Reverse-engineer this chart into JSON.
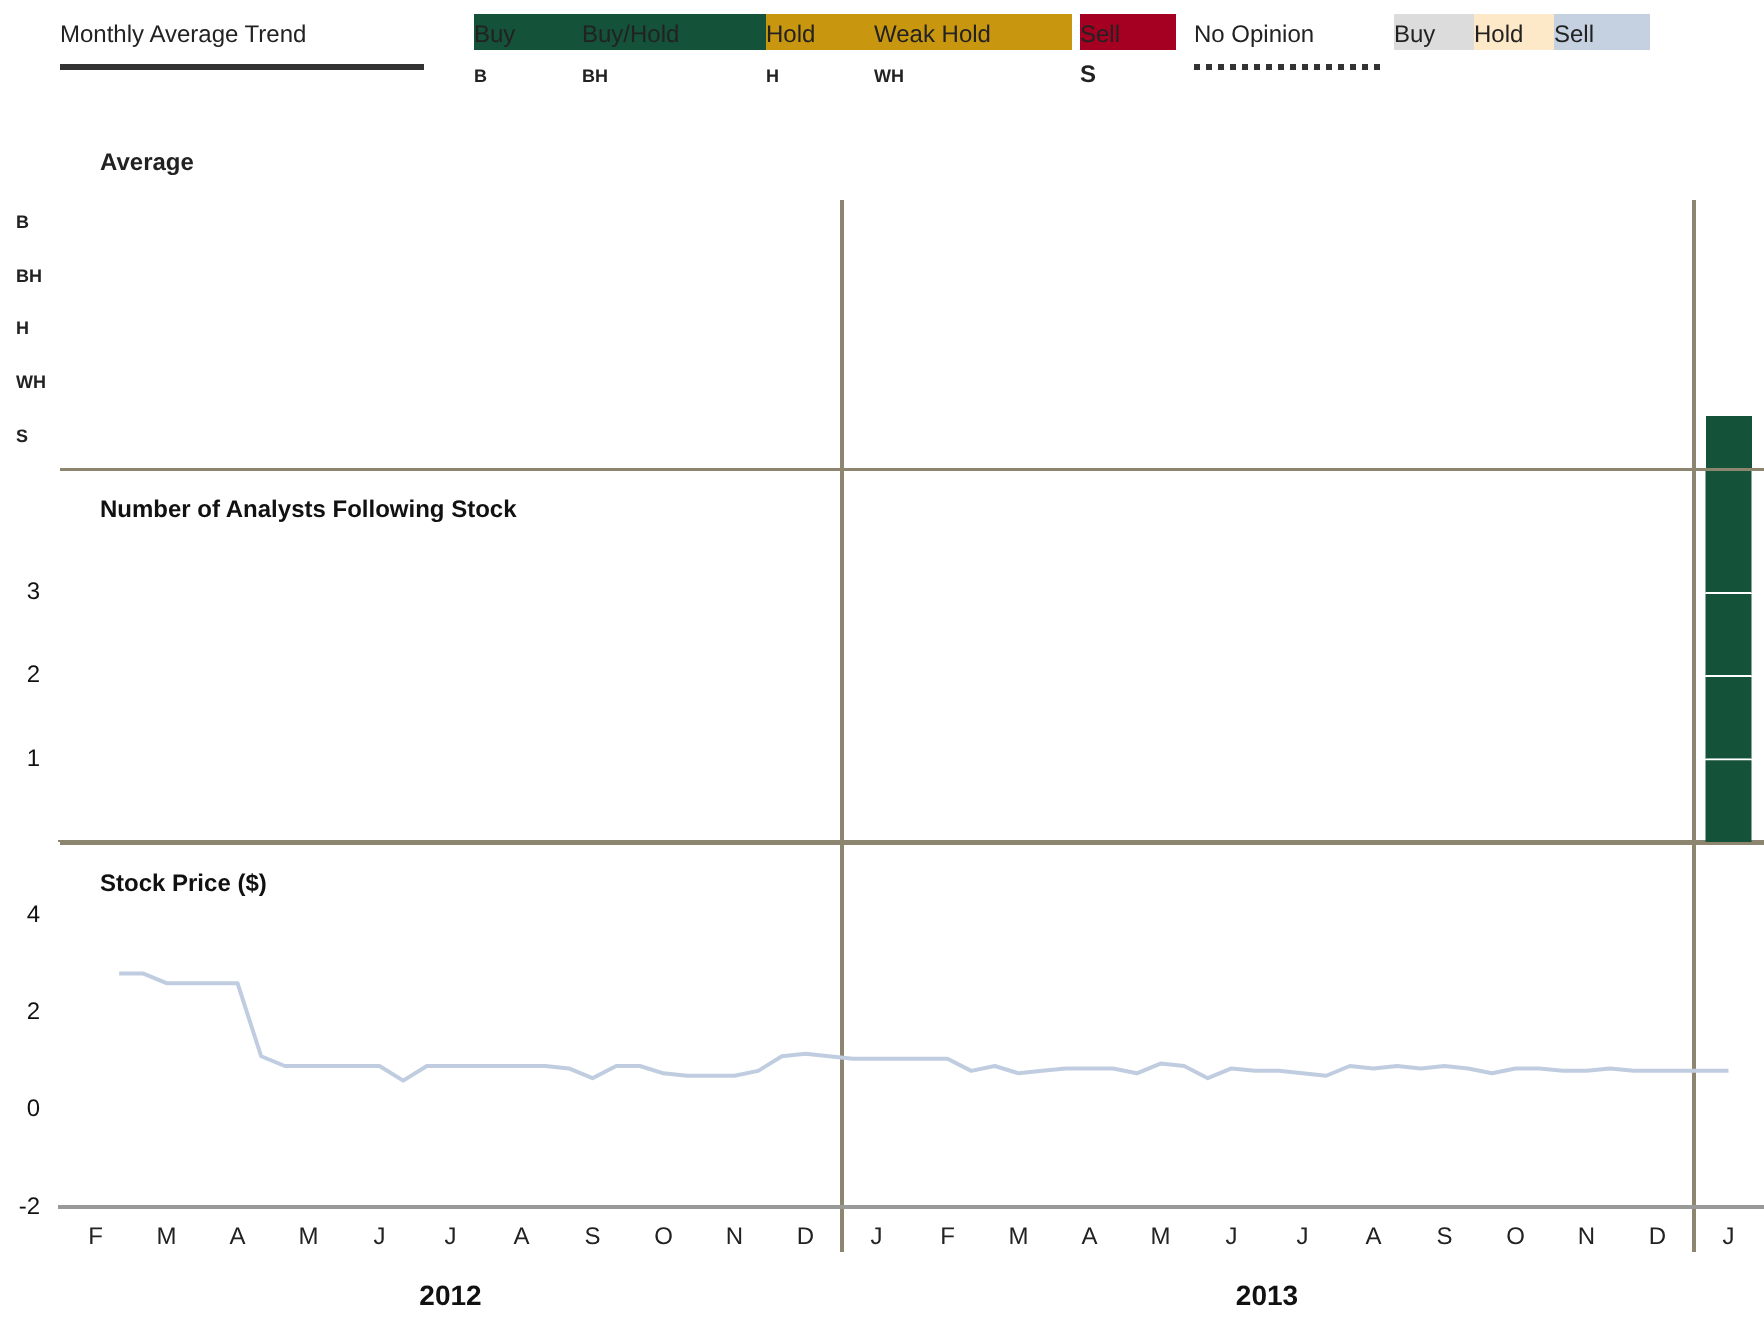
{
  "chart_data": [
    {
      "type": "other",
      "annotations": [
        "Monthly Average Trend",
        "Buy",
        "Buy/Hold",
        "Hold",
        "Weak Hold",
        "Sell",
        "No Opinion",
        "Buy",
        "Hold",
        "Sell",
        "B",
        "BH",
        "H",
        "WH",
        "S"
      ],
      "colors": [
        "#333333",
        "#145239",
        "#145239",
        "#c8960f",
        "#c8960f",
        "#a50021",
        "#333333",
        "#dcdcdc",
        "#fde8c8",
        "#c5d1e0"
      ]
    },
    {
      "type": "other",
      "title": "Average",
      "annotations": [
        "B",
        "BH",
        "H",
        "WH",
        "S"
      ]
    },
    {
      "type": "bar",
      "title": "Number of Analysts Following Stock",
      "stacked": true,
      "categories": [
        null,
        null,
        null,
        null,
        null,
        null,
        null,
        null,
        null,
        null,
        null,
        null,
        null,
        null,
        null,
        null,
        null,
        null,
        null,
        null,
        null,
        null,
        null,
        null,
        null,
        null,
        null,
        null,
        null,
        null,
        null,
        null,
        null,
        null,
        null,
        null,
        null,
        null,
        null,
        null,
        null,
        null,
        null,
        null,
        null,
        null,
        null,
        null,
        null,
        null,
        null,
        null,
        null,
        null,
        null,
        null,
        null,
        null,
        null,
        null,
        null,
        null,
        null,
        null,
        null,
        null,
        null,
        null,
        null,
        null,
        null,
        null
      ],
      "series": [
        {
          "color": "#145239",
          "values": [
            null,
            null,
            null,
            null,
            null,
            null,
            null,
            null,
            null,
            null,
            null,
            null,
            null,
            null,
            null,
            null,
            null,
            null,
            null,
            null,
            null,
            null,
            null,
            null,
            null,
            null,
            null,
            null,
            null,
            null,
            null,
            null,
            null,
            null,
            null,
            null,
            null,
            null,
            null,
            null,
            null,
            null,
            null,
            null,
            null,
            null,
            null,
            null,
            null,
            null,
            null,
            null,
            null,
            null,
            null,
            null,
            null,
            null,
            null,
            null,
            null,
            null,
            null,
            null,
            null,
            null,
            null,
            null,
            null,
            null,
            1,
            null
          ]
        },
        {
          "color": "#145239",
          "values": [
            null,
            null,
            null,
            null,
            null,
            null,
            null,
            null,
            null,
            null,
            null,
            null,
            null,
            null,
            null,
            null,
            null,
            null,
            null,
            null,
            null,
            null,
            null,
            null,
            null,
            null,
            null,
            null,
            null,
            null,
            null,
            null,
            null,
            null,
            null,
            null,
            null,
            null,
            null,
            null,
            null,
            null,
            null,
            null,
            null,
            null,
            null,
            null,
            null,
            null,
            null,
            null,
            null,
            null,
            null,
            null,
            null,
            null,
            null,
            null,
            null,
            null,
            null,
            null,
            null,
            null,
            null,
            null,
            null,
            null,
            1,
            null
          ]
        },
        {
          "color": "#145239",
          "values": [
            null,
            null,
            null,
            null,
            null,
            null,
            null,
            null,
            null,
            null,
            null,
            null,
            null,
            null,
            null,
            null,
            null,
            null,
            null,
            null,
            null,
            null,
            null,
            null,
            null,
            null,
            null,
            null,
            null,
            null,
            null,
            null,
            null,
            null,
            null,
            null,
            null,
            null,
            null,
            null,
            null,
            null,
            null,
            null,
            null,
            null,
            null,
            null,
            null,
            null,
            null,
            null,
            null,
            null,
            null,
            null,
            null,
            null,
            null,
            null,
            null,
            null,
            null,
            null,
            null,
            null,
            null,
            null,
            null,
            null,
            1,
            null
          ]
        },
        {
          "color": "#145239",
          "values": [
            null,
            null,
            null,
            null,
            null,
            null,
            null,
            null,
            null,
            null,
            null,
            null,
            null,
            null,
            null,
            null,
            null,
            null,
            null,
            null,
            null,
            null,
            null,
            null,
            null,
            null,
            null,
            null,
            null,
            null,
            null,
            null,
            null,
            null,
            null,
            null,
            null,
            null,
            null,
            null,
            null,
            null,
            null,
            null,
            null,
            null,
            null,
            null,
            null,
            null,
            null,
            null,
            null,
            null,
            null,
            null,
            null,
            null,
            null,
            null,
            null,
            null,
            null,
            null,
            null,
            null,
            null,
            null,
            null,
            null,
            1.5,
            null
          ]
        }
      ],
      "ylim": [
        0,
        4.5
      ],
      "yticks": [
        1,
        2,
        3
      ],
      "tick_labels": "y",
      "grid": false,
      "legend": false
    },
    {
      "type": "line",
      "title": "Stock Price ($)",
      "color": "#c0cde0",
      "categories": [
        null,
        "F",
        null,
        null,
        "M",
        null,
        null,
        "A",
        null,
        null,
        "M",
        null,
        null,
        "J",
        null,
        null,
        "J",
        null,
        null,
        "A",
        null,
        null,
        "S",
        null,
        null,
        "O",
        null,
        null,
        "N",
        null,
        null,
        "D",
        null,
        null,
        "J",
        null,
        null,
        "F",
        null,
        null,
        "M",
        null,
        null,
        "A",
        null,
        null,
        "M",
        null,
        null,
        "J",
        null,
        null,
        "J",
        null,
        null,
        "A",
        null,
        null,
        "S",
        null,
        null,
        "O",
        null,
        null,
        "N",
        null,
        null,
        "D",
        null,
        null,
        "J",
        null
      ],
      "values": [
        null,
        null,
        2.8,
        2.8,
        2.6,
        2.6,
        2.6,
        2.6,
        1.1,
        0.9,
        0.9,
        0.9,
        0.9,
        0.9,
        0.6,
        0.9,
        0.9,
        0.9,
        0.9,
        0.9,
        0.9,
        0.85,
        0.65,
        0.9,
        0.9,
        0.75,
        0.7,
        0.7,
        0.7,
        0.8,
        1.1,
        1.15,
        1.1,
        1.05,
        1.05,
        1.05,
        1.05,
        1.05,
        0.8,
        0.9,
        0.75,
        0.8,
        0.85,
        0.85,
        0.85,
        0.75,
        0.95,
        0.9,
        0.65,
        0.85,
        0.8,
        0.8,
        0.75,
        0.7,
        0.9,
        0.85,
        0.9,
        0.85,
        0.9,
        0.85,
        0.75,
        0.85,
        0.85,
        0.8,
        0.8,
        0.85,
        0.8,
        0.8,
        0.8,
        0.8,
        0.8,
        null
      ],
      "ylim": [
        -2,
        5.5
      ],
      "yticks": [
        -2,
        0,
        2,
        4
      ],
      "annotations": [
        "2012",
        "2013"
      ],
      "grid": false,
      "legend": false
    }
  ]
}
